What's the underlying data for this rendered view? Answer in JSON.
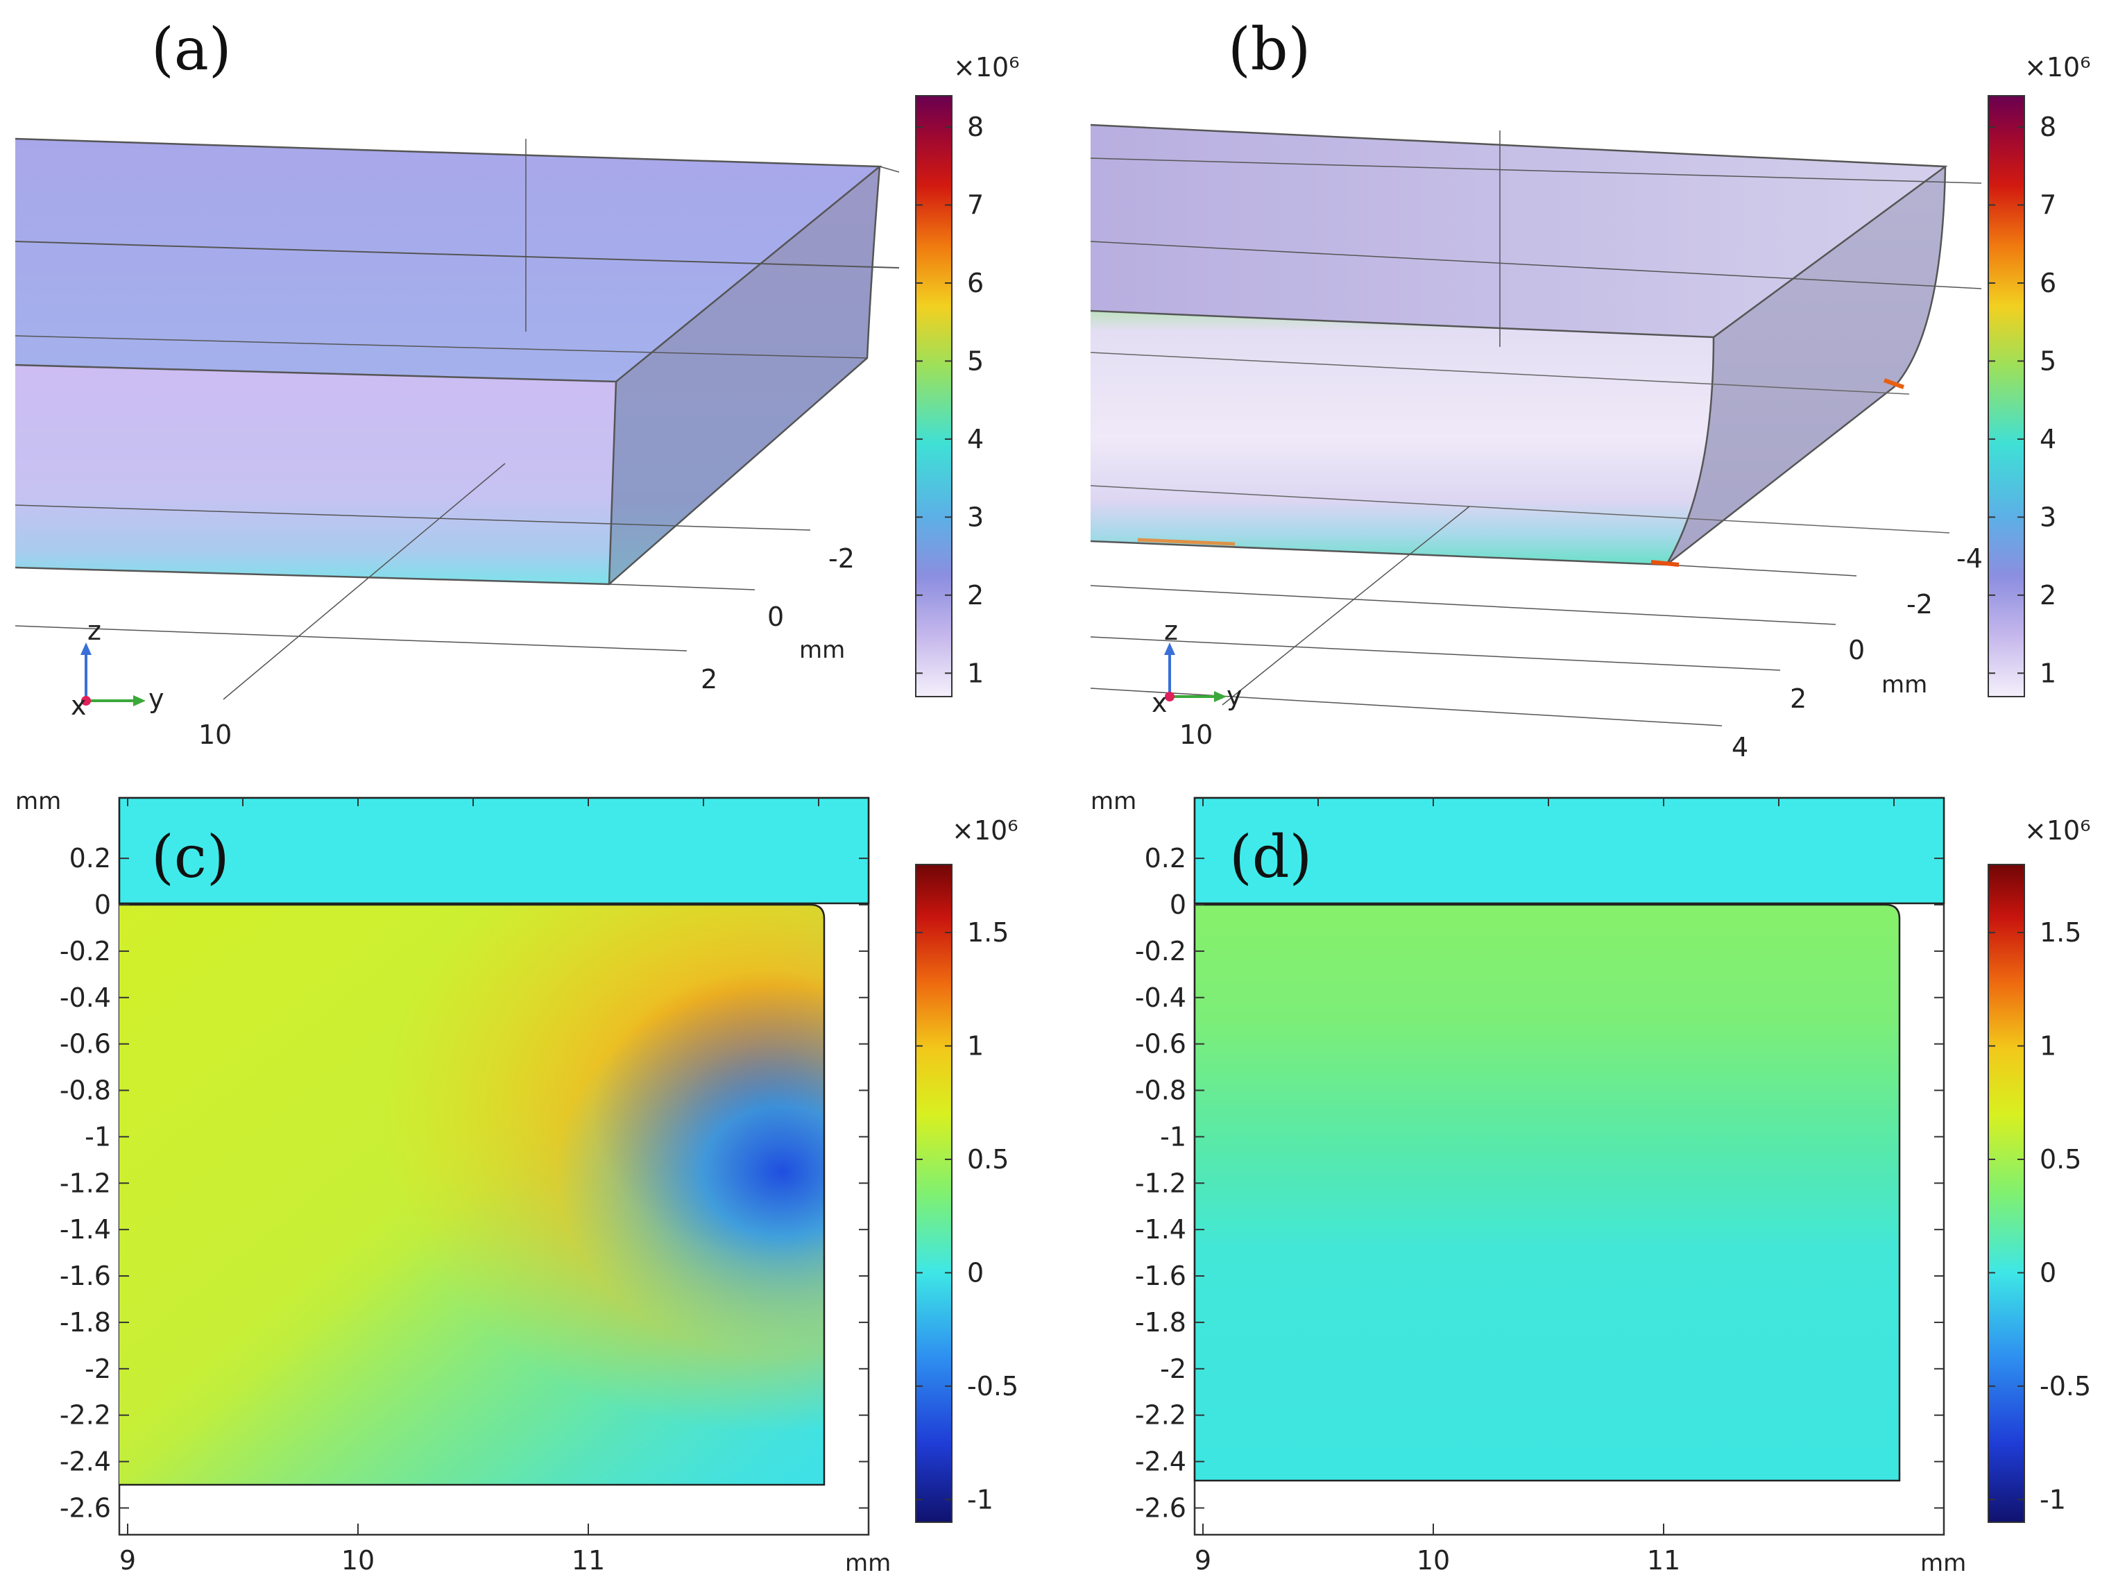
{
  "figure": {
    "panels": {
      "a": {
        "label": "(a)",
        "axes": {
          "y_ticks": [
            "-2",
            "0",
            "2"
          ],
          "x_tick": "10",
          "unit": "mm",
          "triad": {
            "x": "x",
            "y": "y",
            "z": "z"
          }
        },
        "colorbar": {
          "exponent": "×10⁶",
          "ticks": [
            "1",
            "2",
            "3",
            "4",
            "5",
            "6",
            "7",
            "8"
          ],
          "min": 0.7,
          "max": 8.4
        }
      },
      "b": {
        "label": "(b)",
        "axes": {
          "y_ticks": [
            "-4",
            "-2",
            "0",
            "2",
            "4"
          ],
          "x_tick": "10",
          "unit": "mm",
          "triad": {
            "x": "x",
            "y": "y",
            "z": "z"
          }
        },
        "colorbar": {
          "exponent": "×10⁶",
          "ticks": [
            "1",
            "2",
            "3",
            "4",
            "5",
            "6",
            "7",
            "8"
          ],
          "min": 0.7,
          "max": 8.4
        }
      },
      "c": {
        "label": "(c)",
        "unit_y": "mm",
        "unit_x": "mm",
        "y_ticks": [
          "0.2",
          "0",
          "-0.2",
          "-0.4",
          "-0.6",
          "-0.8",
          "-1",
          "-1.2",
          "-1.4",
          "-1.6",
          "-1.8",
          "-2",
          "-2.2",
          "-2.4",
          "-2.6"
        ],
        "x_ticks": [
          "9",
          "10",
          "11"
        ],
        "colorbar": {
          "exponent": "×10⁶",
          "ticks": [
            "1.5",
            "1",
            "0.5",
            "0",
            "-0.5",
            "-1"
          ],
          "min": -1.1,
          "max": 1.8
        }
      },
      "d": {
        "label": "(d)",
        "unit_y": "mm",
        "unit_x": "mm",
        "y_ticks": [
          "0.2",
          "0",
          "-0.2",
          "-0.4",
          "-0.6",
          "-0.8",
          "-1",
          "-1.2",
          "-1.4",
          "-1.6",
          "-1.8",
          "-2",
          "-2.2",
          "-2.4",
          "-2.6"
        ],
        "x_ticks": [
          "9",
          "10",
          "11"
        ],
        "colorbar": {
          "exponent": "×10⁶",
          "ticks": [
            "1.5",
            "1",
            "0.5",
            "0",
            "-0.5",
            "-1"
          ],
          "min": -1.1,
          "max": 1.8
        }
      }
    }
  }
}
